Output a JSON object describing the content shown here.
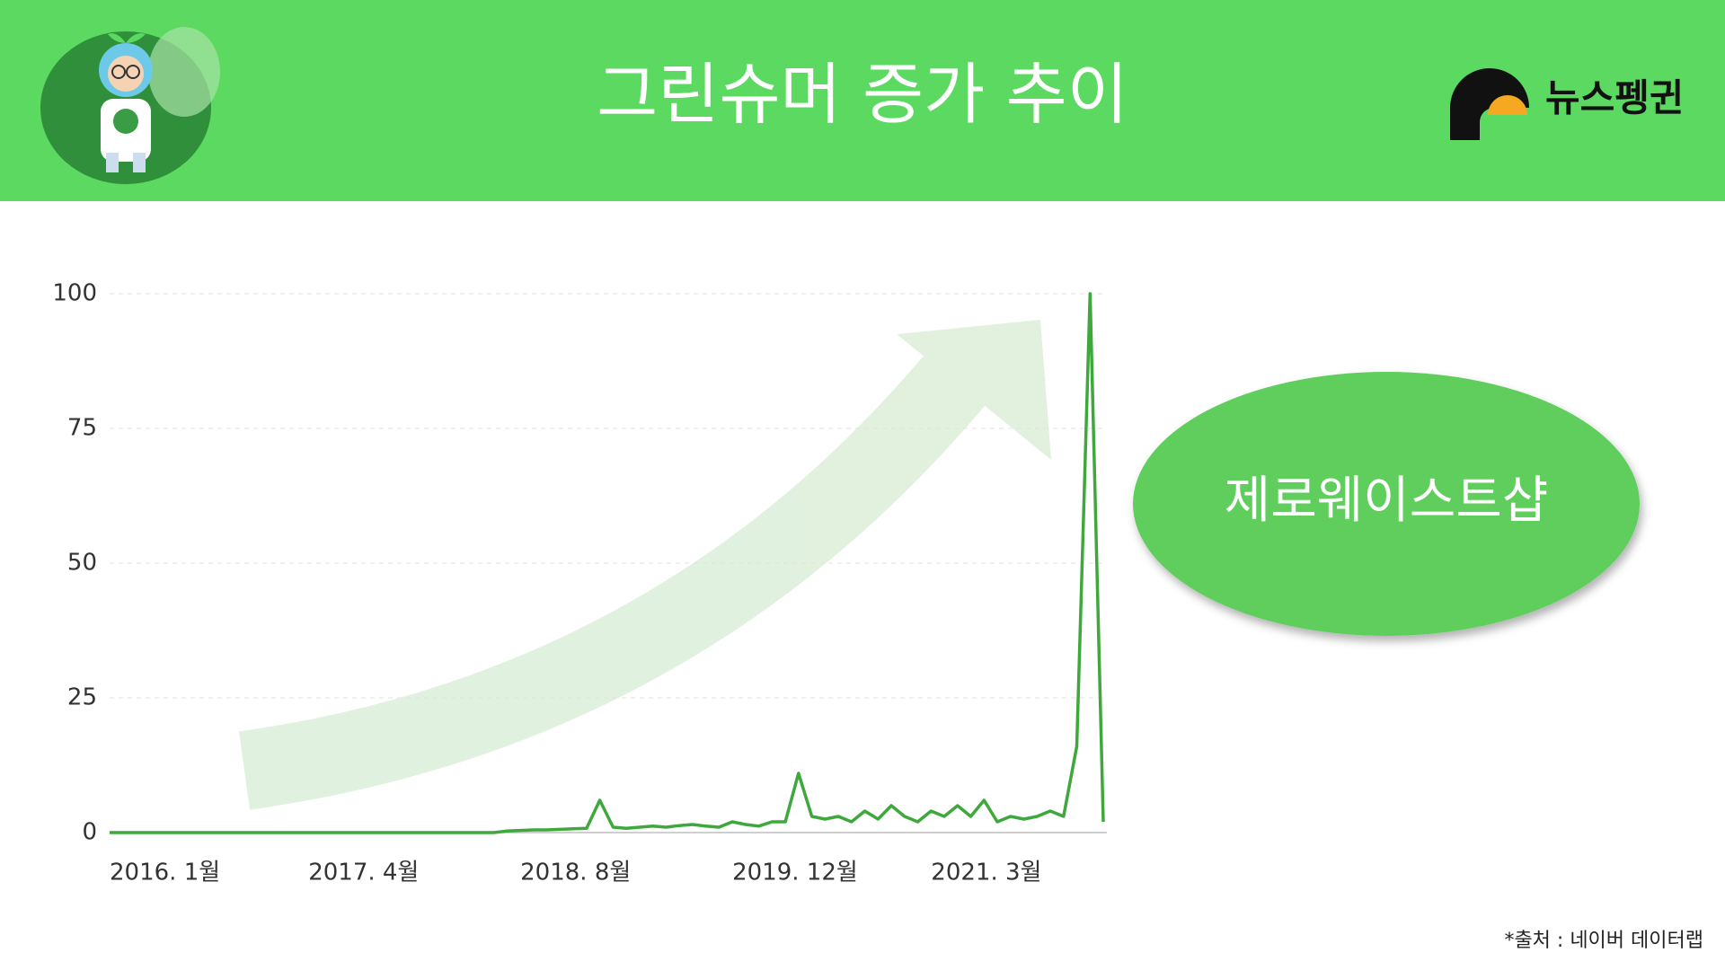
{
  "header": {
    "title": "그린슈머 증가 추이",
    "brand": "뉴스펭귄"
  },
  "chart_data": {
    "type": "line",
    "categories": [
      "2016. 1월",
      null,
      null,
      null,
      null,
      null,
      null,
      null,
      null,
      null,
      null,
      null,
      null,
      null,
      null,
      "2017. 4월",
      null,
      null,
      null,
      null,
      null,
      null,
      null,
      null,
      null,
      null,
      null,
      null,
      null,
      null,
      null,
      "2018. 8월",
      null,
      null,
      null,
      null,
      null,
      null,
      null,
      null,
      null,
      null,
      null,
      null,
      null,
      null,
      null,
      "2019. 12월",
      null,
      null,
      null,
      null,
      null,
      null,
      null,
      null,
      null,
      null,
      null,
      null,
      null,
      null,
      "2021. 3월",
      null,
      null,
      null,
      null,
      null,
      null,
      null,
      null,
      null,
      null,
      null,
      null,
      null
    ],
    "series": [
      {
        "color": "#3ea83d",
        "values": [
          0,
          0,
          0,
          0,
          0,
          0,
          0,
          0,
          0,
          0,
          0,
          0,
          0,
          0,
          0,
          0,
          0,
          0,
          0,
          0,
          0,
          0,
          0,
          0,
          0,
          0,
          0,
          0,
          0,
          0,
          0.3,
          0.4,
          0.5,
          0.5,
          0.6,
          0.7,
          0.8,
          6,
          1,
          0.8,
          1,
          1.2,
          1,
          1.3,
          1.5,
          1.2,
          1,
          2,
          1.5,
          1.2,
          2,
          2,
          11,
          3,
          2.5,
          3,
          2,
          4,
          2.5,
          5,
          3,
          2,
          4,
          3,
          5,
          3,
          6,
          2,
          3,
          2.5,
          3,
          4,
          3,
          16,
          100,
          2
        ]
      }
    ],
    "ylim": [
      0,
      100
    ],
    "yticks": [
      0,
      25,
      50,
      75,
      100
    ],
    "grid": true,
    "annotation": "제로웨이스트샵"
  },
  "source": "*출처 : 네이버 데이터랩"
}
